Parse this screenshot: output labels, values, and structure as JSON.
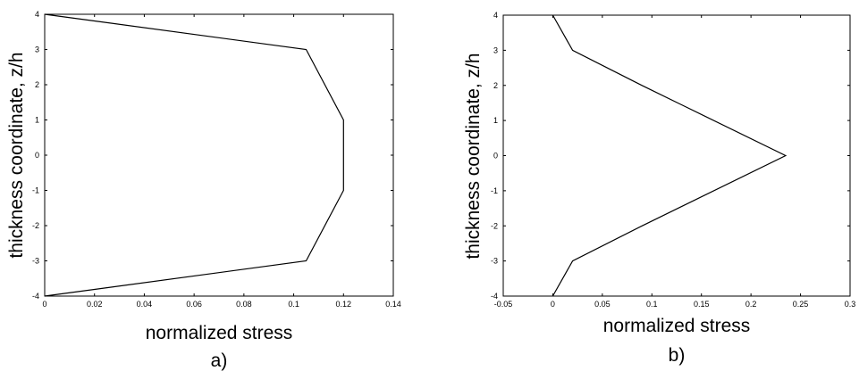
{
  "chart_data": [
    {
      "type": "line",
      "panel_label": "a)",
      "xlabel": "normalized stress",
      "ylabel": "thickness coordinate, z/h",
      "xlim": [
        0,
        0.14
      ],
      "ylim": [
        -4,
        4
      ],
      "xticks": [
        "0",
        "0.02",
        "0.04",
        "0.06",
        "0.08",
        "0.1",
        "0.12",
        "0.14"
      ],
      "yticks": [
        "4",
        "3",
        "2",
        "1",
        "0",
        "-1",
        "-2",
        "-3",
        "-4"
      ],
      "grid": false,
      "x": [
        0.0,
        0.105,
        0.12,
        0.12,
        0.105,
        0.0
      ],
      "y": [
        4,
        3,
        1,
        -1,
        -3,
        -4
      ]
    },
    {
      "type": "line",
      "panel_label": "b)",
      "xlabel": "normalized stress",
      "ylabel": "thickness coordinate, z/h",
      "xlim": [
        -0.05,
        0.3
      ],
      "ylim": [
        -4,
        4
      ],
      "xticks": [
        "-0.05",
        "0",
        "0.05",
        "0.1",
        "0.15",
        "0.2",
        "0.25",
        "0.3"
      ],
      "yticks": [
        "4",
        "3",
        "2",
        "1",
        "0",
        "-1",
        "-2",
        "-3",
        "-4"
      ],
      "grid": false,
      "x": [
        0.0,
        0.02,
        0.09,
        0.235,
        0.09,
        0.02,
        0.0
      ],
      "y": [
        4,
        3,
        2,
        0,
        -2,
        -3,
        -4
      ]
    }
  ]
}
